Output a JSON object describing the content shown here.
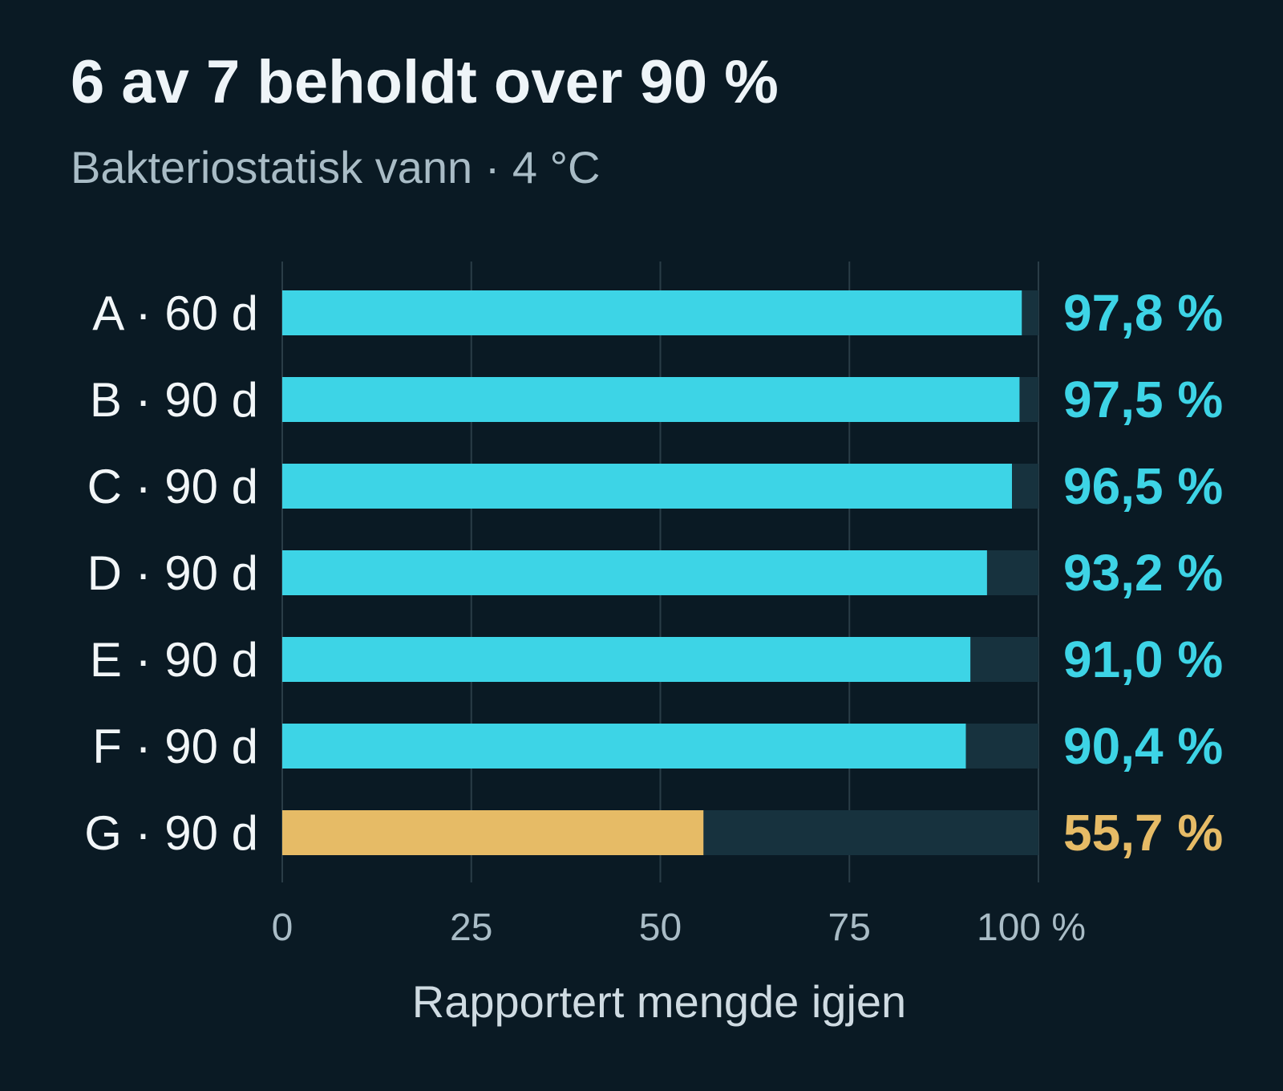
{
  "chart_data": {
    "type": "bar",
    "orientation": "horizontal",
    "title": "6 av 7 beholdt over 90 %",
    "subtitle": "Bakteriostatisk vann · 4 °C",
    "xlabel": "Rapportert mengde igjen",
    "ylabel": "",
    "xlim": [
      0,
      100
    ],
    "ticks": [
      {
        "value": 0,
        "label": "0"
      },
      {
        "value": 25,
        "label": "25"
      },
      {
        "value": 50,
        "label": "50"
      },
      {
        "value": 75,
        "label": "75"
      },
      {
        "value": 100,
        "label": "100 %"
      }
    ],
    "grid": true,
    "categories": [
      "A · 60 d",
      "B · 90 d",
      "C · 90 d",
      "D · 90 d",
      "E · 90 d",
      "F · 90 d",
      "G · 90 d"
    ],
    "values": [
      97.8,
      97.5,
      96.5,
      93.2,
      91.0,
      90.4,
      55.7
    ],
    "value_labels": [
      "97,8 %",
      "97,5 %",
      "96,5 %",
      "93,2 %",
      "91,0 %",
      "90,4 %",
      "55,7 %"
    ],
    "highlight_index": 6,
    "colors": {
      "bar": "#3dd4e6",
      "highlight": "#e6bb66",
      "track": "#17323e",
      "background": "#0a1a24"
    }
  }
}
